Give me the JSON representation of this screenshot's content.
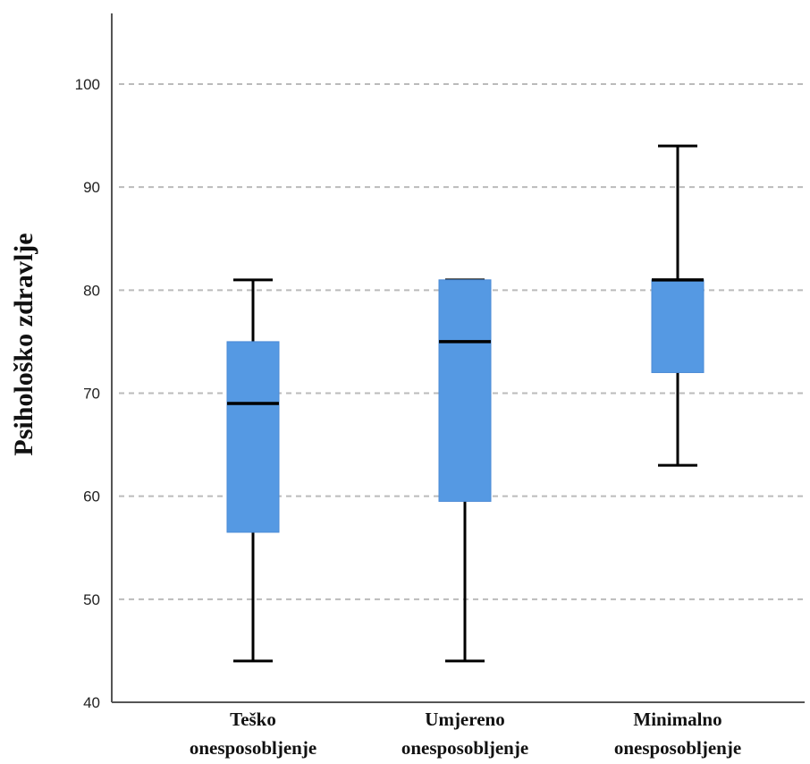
{
  "chart_data": {
    "type": "box",
    "ylabel": "Psihološko zdravlje",
    "xlabel": "",
    "ylim": [
      40,
      106
    ],
    "yticks": [
      40,
      50,
      60,
      70,
      80,
      90,
      100
    ],
    "grid": true,
    "categories": [
      {
        "line1": "Teško",
        "line2": "onesposobljenje"
      },
      {
        "line1": "Umjereno",
        "line2": "onesposobljenje"
      },
      {
        "line1": "Minimalno",
        "line2": "onesposobljenje"
      }
    ],
    "boxes": [
      {
        "min": 44,
        "q1": 56.5,
        "median": 69,
        "q3": 75,
        "max": 81
      },
      {
        "min": 44,
        "q1": 59.5,
        "median": 75,
        "q3": 81,
        "max": 81
      },
      {
        "min": 63,
        "q1": 72,
        "median": 81,
        "q3": 81,
        "max": 94
      }
    ],
    "colors": {
      "box": "#5599e3",
      "line": "#000000",
      "grid": "#bbbbbb",
      "axis": "#555555"
    }
  }
}
